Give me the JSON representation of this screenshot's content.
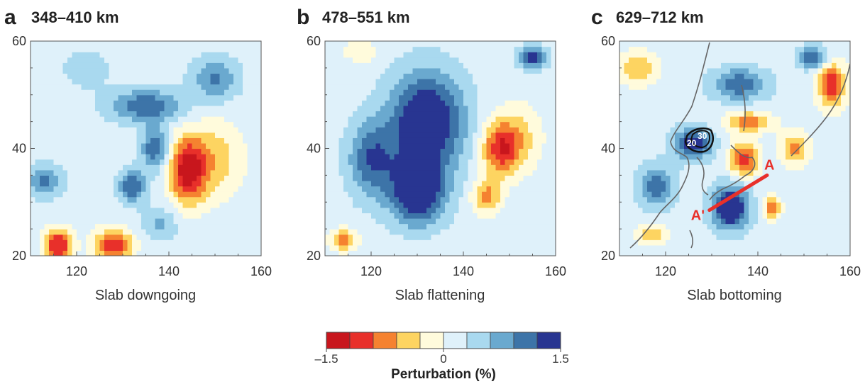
{
  "chart_data": [
    {
      "type": "heatmap",
      "panel_letter": "a",
      "title": "348–410 km",
      "xlabel": "Slab downgoing",
      "xlim": [
        110,
        160
      ],
      "ylim": [
        20,
        60
      ],
      "xticks": [
        120,
        140,
        160
      ],
      "yticks": [
        20,
        40,
        60
      ],
      "colormap_range": [
        -1.5,
        1.5
      ],
      "features": [
        {
          "lon": 144,
          "lat": 36,
          "value": -1.5,
          "sx": 4,
          "sy": 6
        },
        {
          "lon": 150,
          "lat": 38,
          "value": -0.6,
          "sx": 6,
          "sy": 7
        },
        {
          "lon": 116,
          "lat": 22,
          "value": -1.4,
          "sx": 3,
          "sy": 3
        },
        {
          "lon": 128,
          "lat": 22,
          "value": -1.3,
          "sx": 4,
          "sy": 3
        },
        {
          "lon": 113,
          "lat": 34,
          "value": 0.8,
          "sx": 4,
          "sy": 3
        },
        {
          "lon": 135,
          "lat": 48,
          "value": 1.0,
          "sx": 8,
          "sy": 3
        },
        {
          "lon": 132,
          "lat": 33,
          "value": 1.1,
          "sx": 3,
          "sy": 3
        },
        {
          "lon": 137,
          "lat": 40,
          "value": 1.0,
          "sx": 3,
          "sy": 4
        },
        {
          "lon": 150,
          "lat": 53,
          "value": 0.8,
          "sx": 5,
          "sy": 4
        },
        {
          "lon": 122,
          "lat": 55,
          "value": 0.3,
          "sx": 6,
          "sy": 4
        },
        {
          "lon": 138,
          "lat": 26,
          "value": 0.5,
          "sx": 4,
          "sy": 3
        }
      ]
    },
    {
      "type": "heatmap",
      "panel_letter": "b",
      "title": "478–551 km",
      "xlabel": "Slab flattening",
      "xlim": [
        110,
        160
      ],
      "ylim": [
        20,
        60
      ],
      "xticks": [
        120,
        140,
        160
      ],
      "yticks": [
        20,
        40,
        60
      ],
      "colormap_range": [
        -1.5,
        1.5
      ],
      "features": [
        {
          "lon": 132,
          "lat": 45,
          "value": 1.6,
          "sx": 8,
          "sy": 9
        },
        {
          "lon": 130,
          "lat": 32,
          "value": 1.5,
          "sx": 6,
          "sy": 6
        },
        {
          "lon": 120,
          "lat": 38,
          "value": 1.0,
          "sx": 5,
          "sy": 7
        },
        {
          "lon": 148,
          "lat": 40,
          "value": -1.2,
          "sx": 4,
          "sy": 5
        },
        {
          "lon": 145,
          "lat": 31,
          "value": -0.9,
          "sx": 3,
          "sy": 3
        },
        {
          "lon": 152,
          "lat": 42,
          "value": -0.5,
          "sx": 5,
          "sy": 6
        },
        {
          "lon": 114,
          "lat": 23,
          "value": -0.9,
          "sx": 3,
          "sy": 2
        },
        {
          "lon": 118,
          "lat": 58,
          "value": -0.4,
          "sx": 4,
          "sy": 2
        },
        {
          "lon": 155,
          "lat": 57,
          "value": 1.2,
          "sx": 3,
          "sy": 2
        }
      ]
    },
    {
      "type": "heatmap",
      "panel_letter": "c",
      "title": "629–712 km",
      "xlabel": "Slab bottoming",
      "xlim": [
        110,
        160
      ],
      "ylim": [
        20,
        60
      ],
      "xticks": [
        120,
        140,
        160
      ],
      "yticks": [
        20,
        40,
        60
      ],
      "colormap_range": [
        -1.5,
        1.5
      ],
      "features": [
        {
          "lon": 134,
          "lat": 29,
          "value": 1.6,
          "sx": 4,
          "sy": 4
        },
        {
          "lon": 126,
          "lat": 41,
          "value": 1.3,
          "sx": 4,
          "sy": 3
        },
        {
          "lon": 136,
          "lat": 52,
          "value": 1.0,
          "sx": 6,
          "sy": 3
        },
        {
          "lon": 118,
          "lat": 33,
          "value": 0.9,
          "sx": 4,
          "sy": 4
        },
        {
          "lon": 152,
          "lat": 57,
          "value": 1.1,
          "sx": 3,
          "sy": 2
        },
        {
          "lon": 138,
          "lat": 45,
          "value": -0.9,
          "sx": 5,
          "sy": 2
        },
        {
          "lon": 137,
          "lat": 38,
          "value": -1.3,
          "sx": 3,
          "sy": 3
        },
        {
          "lon": 156,
          "lat": 52,
          "value": -1.3,
          "sx": 3,
          "sy": 4
        },
        {
          "lon": 148,
          "lat": 40,
          "value": -0.9,
          "sx": 3,
          "sy": 3
        },
        {
          "lon": 114,
          "lat": 55,
          "value": -0.7,
          "sx": 4,
          "sy": 3
        },
        {
          "lon": 143,
          "lat": 29,
          "value": -0.9,
          "sx": 2,
          "sy": 2
        },
        {
          "lon": 117,
          "lat": 24,
          "value": -0.7,
          "sx": 3,
          "sy": 2
        }
      ],
      "contour_labels": [
        "20",
        "30"
      ],
      "profile": {
        "start_label": "A",
        "end_label": "A'",
        "start": [
          142,
          35
        ],
        "end": [
          129.5,
          28.5
        ],
        "color": "#e8302a"
      }
    }
  ],
  "colorbar": {
    "title": "Perturbation (%)",
    "ticks": [
      {
        "value": -1.5,
        "label": "–1.5"
      },
      {
        "value": 0,
        "label": "0"
      },
      {
        "value": 1.5,
        "label": "1.5"
      }
    ],
    "colors": [
      "#c8161d",
      "#e8302a",
      "#f58230",
      "#fdd461",
      "#fffbdc",
      "#dff1fa",
      "#a9d9ef",
      "#6aa9cf",
      "#3d74a8",
      "#283591"
    ]
  }
}
